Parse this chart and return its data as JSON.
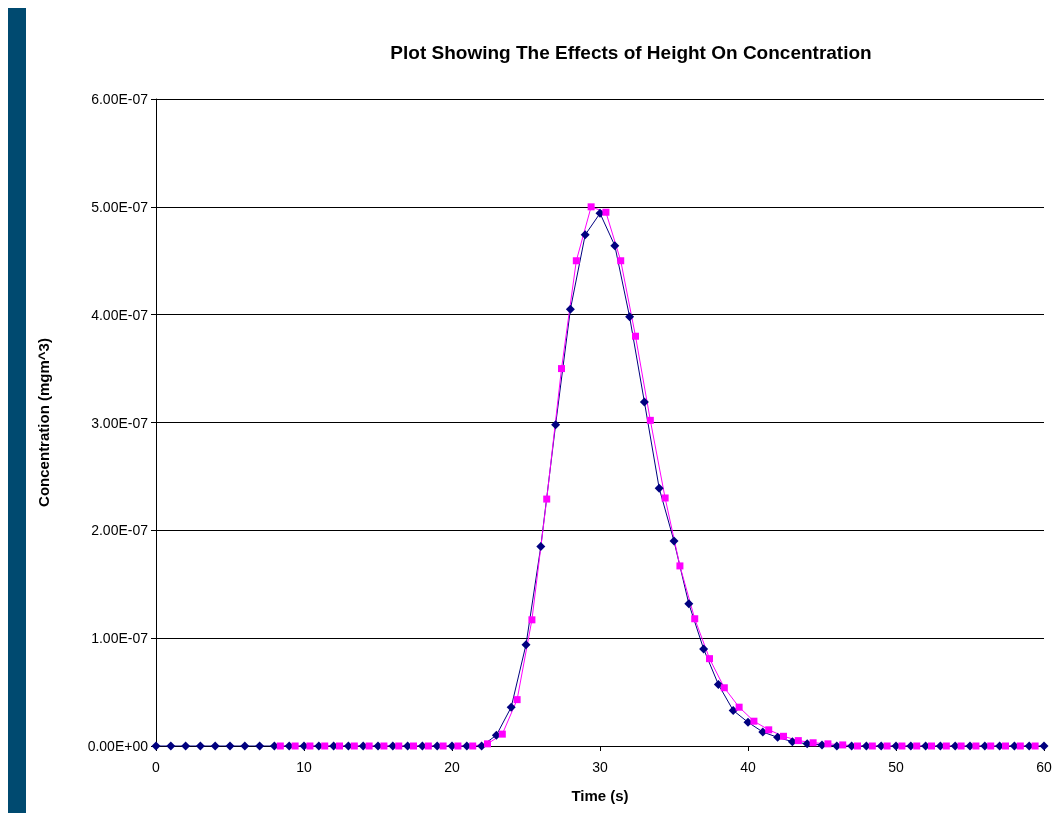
{
  "chart_data": {
    "type": "line",
    "title": "Plot Showing The Effects of Height On Concentration",
    "xlabel": "Time (s)",
    "ylabel": "Concentration (mgm^3)",
    "xlim": [
      0,
      60
    ],
    "xticks": [
      0,
      10,
      20,
      30,
      40,
      50,
      60
    ],
    "ylim": [
      0,
      6e-07
    ],
    "yticks": [
      {
        "value": 0,
        "label": "0.00E+00"
      },
      {
        "value": 1e-07,
        "label": "1.00E-07"
      },
      {
        "value": 2e-07,
        "label": "2.00E-07"
      },
      {
        "value": 3e-07,
        "label": "3.00E-07"
      },
      {
        "value": 4e-07,
        "label": "4.00E-07"
      },
      {
        "value": 5e-07,
        "label": "5.00E-07"
      },
      {
        "value": 6e-07,
        "label": "6.00E-07"
      }
    ],
    "grid": "y",
    "line_style": "solid",
    "series": [
      {
        "color": "#000080",
        "marker": "diamond",
        "x": [
          0,
          1,
          2,
          3,
          4,
          5,
          6,
          7,
          8,
          9,
          10,
          11,
          12,
          13,
          14,
          15,
          16,
          17,
          18,
          19,
          20,
          21,
          22,
          23,
          24,
          25,
          26,
          27,
          28,
          29,
          30,
          31,
          32,
          33,
          34,
          35,
          36,
          37,
          38,
          39,
          40,
          41,
          42,
          43,
          44,
          45,
          46,
          47,
          48,
          49,
          50,
          51,
          52,
          53,
          54,
          55,
          56,
          57,
          58,
          59,
          60
        ],
        "values": [
          0,
          0,
          0,
          0,
          0,
          0,
          0,
          0,
          0,
          0,
          0,
          0,
          0,
          0,
          0,
          0,
          0,
          0,
          0,
          0,
          0,
          0,
          0,
          1e-08,
          3.6e-08,
          9.4e-08,
          1.85e-07,
          2.98e-07,
          4.05e-07,
          4.74e-07,
          4.94e-07,
          4.64e-07,
          3.98e-07,
          3.19e-07,
          2.39e-07,
          1.9e-07,
          1.32e-07,
          9e-08,
          5.7e-08,
          3.3e-08,
          2.2e-08,
          1.3e-08,
          8e-09,
          4e-09,
          2e-09,
          1e-09,
          0,
          0,
          0,
          0,
          0,
          0,
          0,
          0,
          0,
          0,
          0,
          0,
          0,
          0,
          0
        ]
      },
      {
        "color": "#ff00ff",
        "marker": "square",
        "x": [
          8.4,
          9.4,
          10.4,
          11.4,
          12.4,
          13.4,
          14.4,
          15.4,
          16.4,
          17.4,
          18.4,
          19.4,
          20.4,
          21.4,
          22.4,
          23.4,
          24.4,
          25.4,
          26.4,
          27.4,
          28.4,
          29.4,
          30.4,
          31.4,
          32.4,
          33.4,
          34.4,
          35.4,
          36.4,
          37.4,
          38.4,
          39.4,
          40.4,
          41.4,
          42.4,
          43.4,
          44.4,
          45.4,
          46.4,
          47.4,
          48.4,
          49.4,
          50.4,
          51.4,
          52.4,
          53.4,
          54.4,
          55.4,
          56.4,
          57.4,
          58.4,
          59.4
        ],
        "values": [
          0,
          0,
          0,
          0,
          0,
          0,
          0,
          0,
          0,
          0,
          0,
          0,
          0,
          0,
          2e-09,
          1.1e-08,
          4.3e-08,
          1.17e-07,
          2.29e-07,
          3.5e-07,
          4.5e-07,
          5e-07,
          4.95e-07,
          4.5e-07,
          3.8e-07,
          3.02e-07,
          2.3e-07,
          1.67e-07,
          1.18e-07,
          8.1e-08,
          5.4e-08,
          3.6e-08,
          2.3e-08,
          1.5e-08,
          9e-09,
          5e-09,
          3e-09,
          2e-09,
          1e-09,
          0,
          0,
          0,
          0,
          0,
          0,
          0,
          0,
          0,
          0,
          0,
          0,
          0
        ]
      }
    ]
  }
}
